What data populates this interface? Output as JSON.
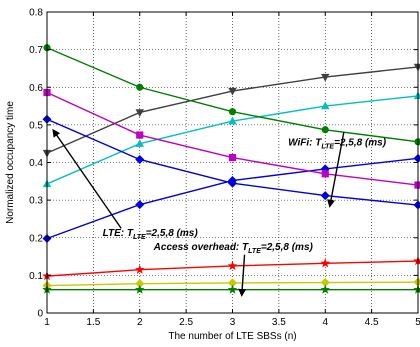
{
  "chart_data": {
    "type": "line",
    "xlabel": "The number of LTE SBSs (n)",
    "ylabel": "Normalized occupancy time",
    "xlim": [
      1,
      5
    ],
    "ylim": [
      0,
      0.8
    ],
    "xticks": [
      "1",
      "1.5",
      "2",
      "2.5",
      "3",
      "3.5",
      "4",
      "4.5",
      "5"
    ],
    "yticks": [
      "0",
      "0.1",
      "0.2",
      "0.3",
      "0.4",
      "0.5",
      "0.6",
      "0.7",
      "0.8"
    ],
    "grid": true,
    "x": [
      1,
      2,
      3,
      4,
      5
    ],
    "series": [
      {
        "color": "#ff0000",
        "marker": "star",
        "values": [
          0.098,
          0.115,
          0.125,
          0.132,
          0.138
        ]
      },
      {
        "color": "#c8c800",
        "marker": "diamond",
        "values": [
          0.073,
          0.078,
          0.08,
          0.081,
          0.082
        ]
      },
      {
        "color": "#008000",
        "marker": "star",
        "values": [
          0.062,
          0.062,
          0.062,
          0.062,
          0.062
        ]
      },
      {
        "color": "#404040",
        "marker": "triangle-down",
        "values": [
          0.425,
          0.533,
          0.59,
          0.627,
          0.654
        ]
      },
      {
        "color": "#00c0c0",
        "marker": "triangle-up",
        "values": [
          0.343,
          0.45,
          0.51,
          0.55,
          0.577
        ]
      },
      {
        "color": "#0000e0",
        "marker": "diamond",
        "values": [
          0.198,
          0.288,
          0.352,
          0.383,
          0.411
        ]
      },
      {
        "color": "#008000",
        "marker": "circle",
        "values": [
          0.705,
          0.6,
          0.535,
          0.487,
          0.455
        ]
      },
      {
        "color": "#c000c0",
        "marker": "square",
        "values": [
          0.586,
          0.473,
          0.413,
          0.37,
          0.34
        ]
      },
      {
        "color": "#0000e0",
        "marker": "diamond",
        "values": [
          0.515,
          0.408,
          0.345,
          0.312,
          0.287
        ]
      }
    ],
    "annotations": [
      {
        "main": "WiFi: T",
        "sub": "LTE",
        "rest": "=2,5,8 (ms)",
        "at": [
          3.6,
          0.445
        ],
        "arrow_from": [
          4.2,
          0.48
        ],
        "arrow_to": [
          4.05,
          0.285
        ]
      },
      {
        "main": "LTE: T",
        "sub": "LTE",
        "rest": "=2,5,8 (ms)",
        "at": [
          1.6,
          0.205
        ],
        "arrow_from": [
          1.8,
          0.225
        ],
        "arrow_to": [
          1.07,
          0.485
        ]
      },
      {
        "main": "Access overhead: T",
        "sub": "LTE",
        "rest": "=2,5,8 (ms)",
        "at": [
          2.15,
          0.168
        ],
        "arrow_from": [
          3.13,
          0.155
        ],
        "arrow_to": [
          3.1,
          0.048
        ]
      }
    ]
  }
}
